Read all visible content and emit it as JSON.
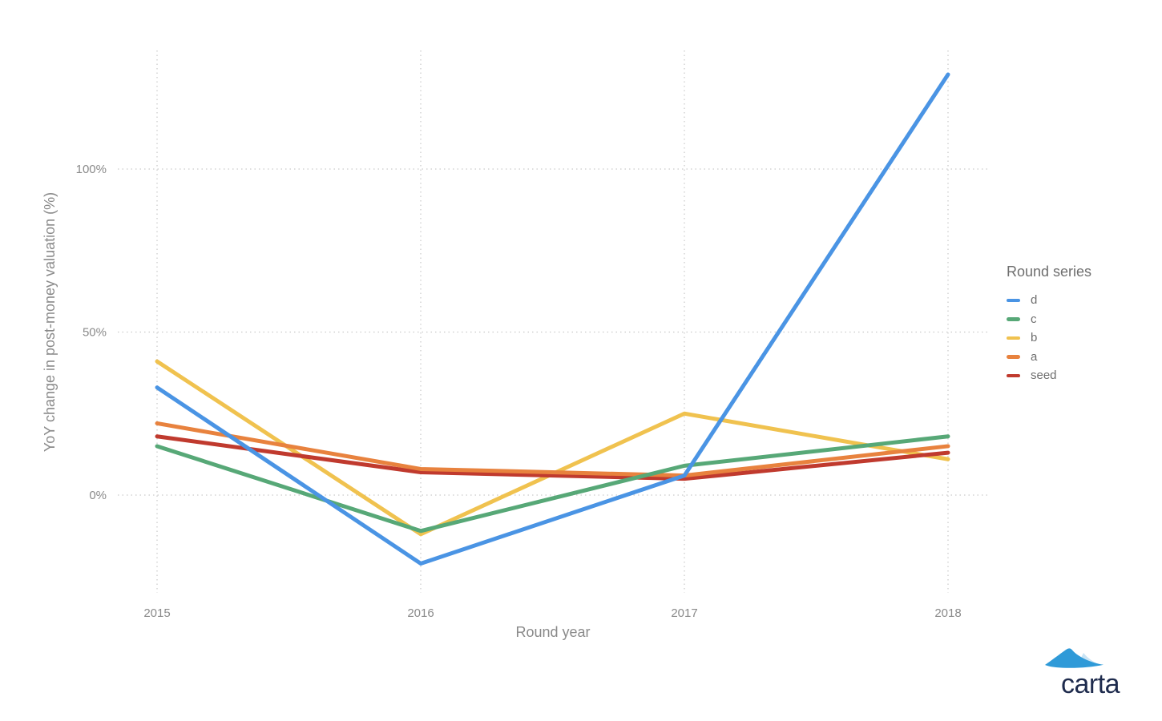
{
  "chart_data": {
    "type": "line",
    "title": "",
    "xlabel": "Round year",
    "ylabel": "YoY change in post-money valuation (%)",
    "x": [
      2015,
      2016,
      2017,
      2018
    ],
    "x_tick_labels": [
      "2015",
      "2016",
      "2017",
      "2018"
    ],
    "y_ticks": [
      0,
      50,
      100
    ],
    "y_tick_labels": [
      "0%",
      "50%",
      "100%"
    ],
    "ylim": [
      -30,
      136
    ],
    "grid": "dotted",
    "legend_title": "Round series",
    "legend_position": "right",
    "series": [
      {
        "name": "d",
        "color": "#4a94e4",
        "values": [
          33,
          -21,
          6,
          129
        ]
      },
      {
        "name": "c",
        "color": "#57a877",
        "values": [
          15,
          -11,
          9,
          18
        ]
      },
      {
        "name": "b",
        "color": "#f0c24f",
        "values": [
          41,
          -12,
          25,
          11
        ]
      },
      {
        "name": "a",
        "color": "#e8823e",
        "values": [
          22,
          8,
          6,
          15
        ]
      },
      {
        "name": "seed",
        "color": "#c03a2e",
        "values": [
          18,
          7,
          5,
          13
        ]
      }
    ],
    "z_order": [
      "b",
      "seed",
      "a",
      "c",
      "d"
    ]
  },
  "branding": {
    "logo_text": "carta",
    "logo_blue": "#2f9ad8",
    "logo_light_blue": "#c9e4f5",
    "logo_text_color": "#1e2b4d"
  }
}
